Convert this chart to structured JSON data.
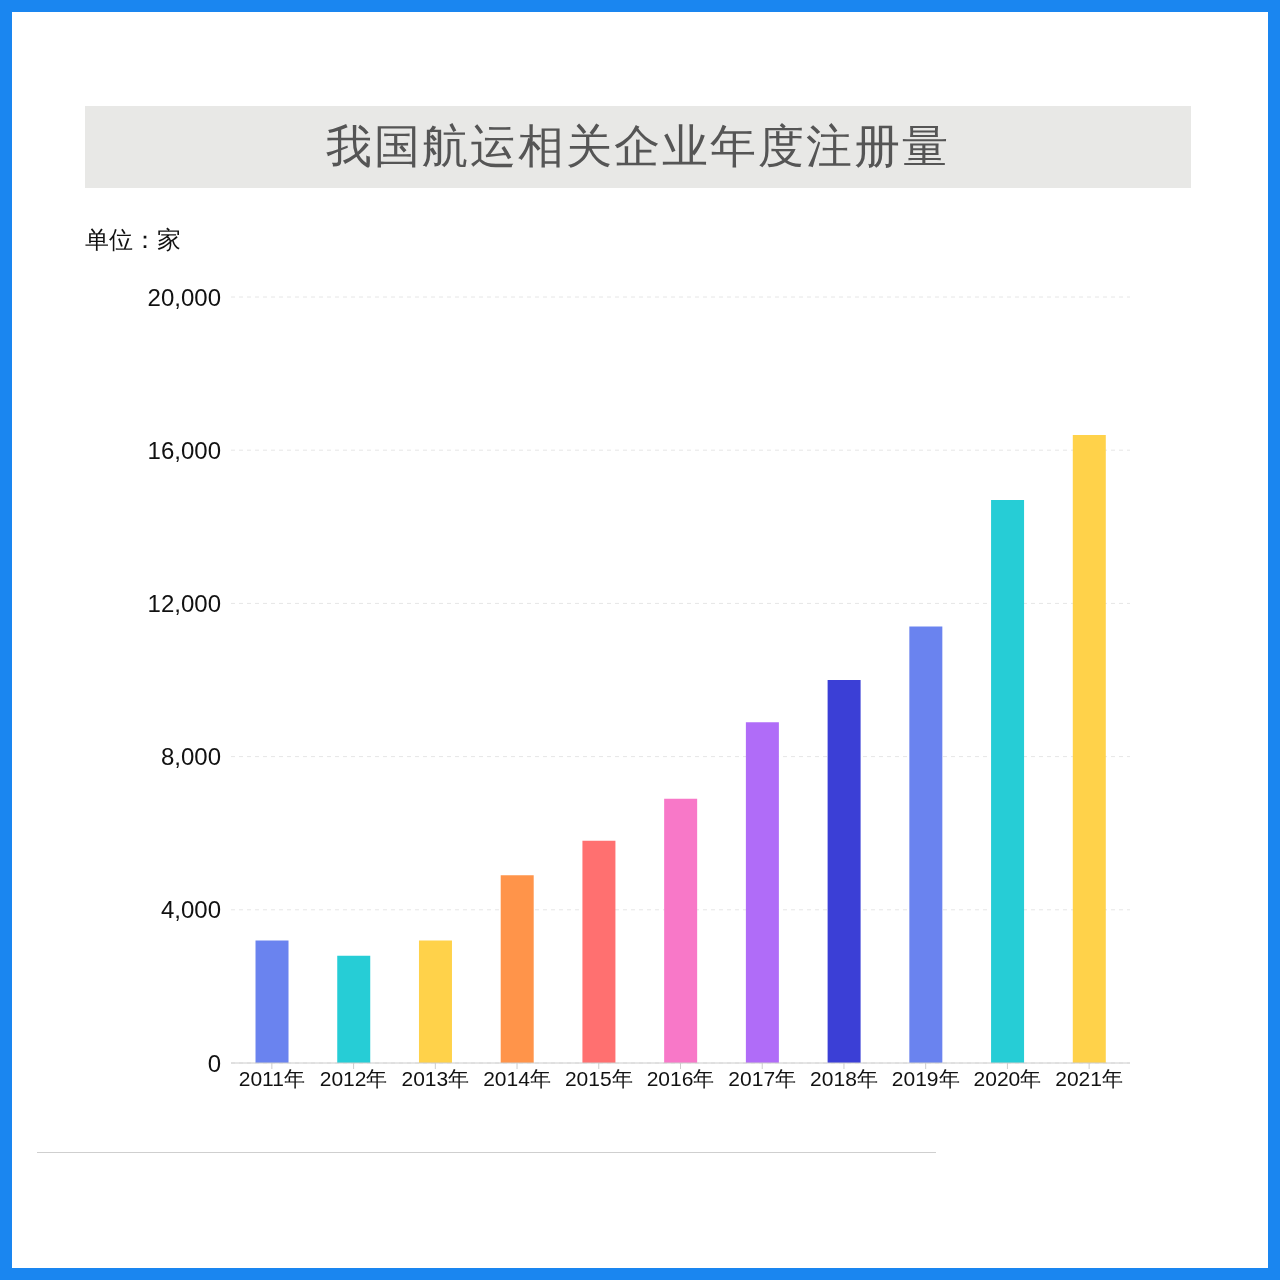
{
  "chart_data": {
    "type": "bar",
    "title": "我国航运相关企业年度注册量",
    "ylabel": "单位：家",
    "categories": [
      "2011年",
      "2012年",
      "2013年",
      "2014年",
      "2015年",
      "2016年",
      "2017年",
      "2018年",
      "2019年",
      "2020年",
      "2021年"
    ],
    "values": [
      3200,
      2800,
      3200,
      4900,
      5800,
      6900,
      8900,
      10000,
      11400,
      14700,
      16400
    ],
    "colors": [
      "#6a83ef",
      "#26cdd6",
      "#ffd24a",
      "#ff944a",
      "#ff7070",
      "#f878c8",
      "#b06cf8",
      "#3b3fd6",
      "#6a83ef",
      "#26cdd6",
      "#ffd24a"
    ],
    "ylim": [
      0,
      20000
    ],
    "yticks": [
      0,
      {
        "value": 4000,
        "label": "4,000"
      },
      {
        "value": 8000,
        "label": "8,000"
      },
      {
        "value": 12000,
        "label": "12,000"
      },
      {
        "value": 16000,
        "label": "16,000"
      },
      {
        "value": 20000,
        "label": "20,000"
      }
    ],
    "grid": "y"
  }
}
